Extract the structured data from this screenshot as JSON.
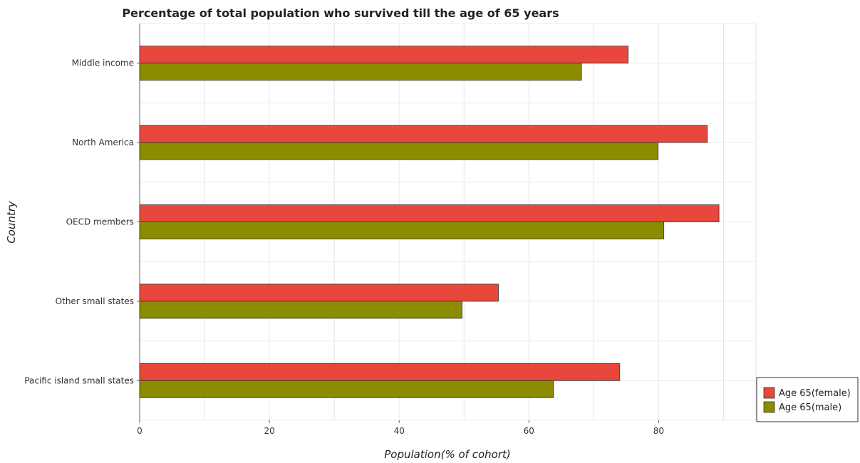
{
  "chart_data": {
    "type": "bar",
    "orientation": "horizontal",
    "title": "Percentage of total population who survived till the age of 65 years",
    "xlabel": "Population(% of cohort)",
    "ylabel": "Country",
    "xlim": [
      0,
      95
    ],
    "xticks": [
      "0",
      "20",
      "40",
      "60",
      "80"
    ],
    "xtick_values": [
      0,
      20,
      40,
      60,
      80
    ],
    "grid": true,
    "legend_position": "bottom-right",
    "categories": [
      "Middle income",
      "North America",
      "OECD members",
      "Other small states",
      "Pacific island small states"
    ],
    "series": [
      {
        "name": "Age 65(female)",
        "color": "#e8473b",
        "values": [
          75.3,
          87.5,
          89.3,
          55.3,
          74.0
        ]
      },
      {
        "name": "Age 65(male)",
        "color": "#8c8c00",
        "values": [
          68.1,
          79.9,
          80.8,
          49.7,
          63.8
        ]
      }
    ]
  }
}
